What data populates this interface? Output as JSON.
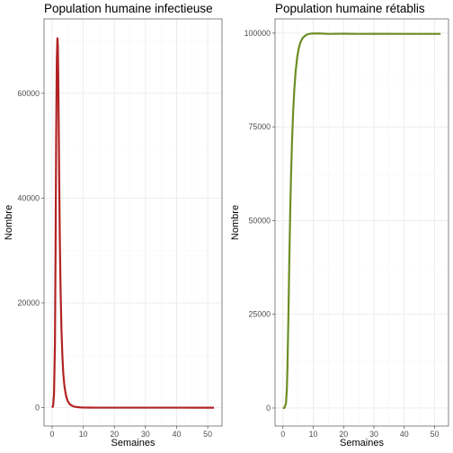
{
  "chart_data": [
    {
      "type": "line",
      "title": "Population humaine infectieuse",
      "xlabel": "Semaines",
      "ylabel": "Nombre",
      "xlim": [
        -2.6,
        54.6
      ],
      "ylim": [
        -3500,
        74200
      ],
      "xticks": [
        0,
        10,
        20,
        30,
        40,
        50
      ],
      "yticks": [
        0,
        20000,
        40000,
        60000
      ],
      "ytick_labels": [
        "0",
        "20000",
        "40000",
        "60000"
      ],
      "grid": true,
      "series": [
        {
          "color": "#b22222",
          "x": [
            0,
            0.3,
            0.6,
            0.9,
            1.1,
            1.3,
            1.5,
            1.7,
            1.85,
            2.0,
            2.15,
            2.3,
            2.5,
            2.7,
            3.0,
            3.3,
            3.6,
            4.0,
            4.5,
            5.0,
            5.5,
            6.0,
            7.0,
            8.0,
            9.0,
            10.0,
            12.0,
            15.0,
            20.0,
            30.0,
            40.0,
            52.0
          ],
          "y": [
            0,
            300,
            2500,
            12000,
            30000,
            52000,
            66000,
            70500,
            69000,
            62000,
            52000,
            42000,
            31000,
            23000,
            15000,
            9800,
            6400,
            3900,
            2200,
            1300,
            800,
            500,
            220,
            110,
            60,
            35,
            18,
            10,
            6,
            3,
            2,
            1
          ]
        }
      ]
    },
    {
      "type": "line",
      "title": "Population humaine rétablis",
      "xlabel": "Semaines",
      "ylabel": "Nombre",
      "xlim": [
        -2.6,
        54.6
      ],
      "ylim": [
        -4800,
        103800
      ],
      "xticks": [
        0,
        10,
        20,
        30,
        40,
        50
      ],
      "yticks": [
        0,
        25000,
        50000,
        75000,
        100000
      ],
      "ytick_labels": [
        "0",
        "25000",
        "50000",
        "75000",
        "100000"
      ],
      "grid": true,
      "series": [
        {
          "color": "#6b8e23",
          "x": [
            0,
            0.5,
            1.0,
            1.3,
            1.5,
            1.8,
            2.1,
            2.4,
            2.7,
            3.0,
            3.4,
            3.8,
            4.2,
            4.7,
            5.2,
            5.8,
            6.5,
            7.3,
            8.0,
            9.0,
            10.0,
            12.0,
            15.0,
            20.0,
            25.0,
            30.0,
            40.0,
            52.0
          ],
          "y": [
            0,
            60,
            1200,
            5000,
            11000,
            24000,
            39000,
            52000,
            62500,
            71000,
            79500,
            85500,
            89800,
            93500,
            95900,
            97600,
            98700,
            99300,
            99650,
            99850,
            99900,
            99920,
            99800,
            99850,
            99800,
            99820,
            99800,
            99800
          ]
        }
      ]
    }
  ]
}
